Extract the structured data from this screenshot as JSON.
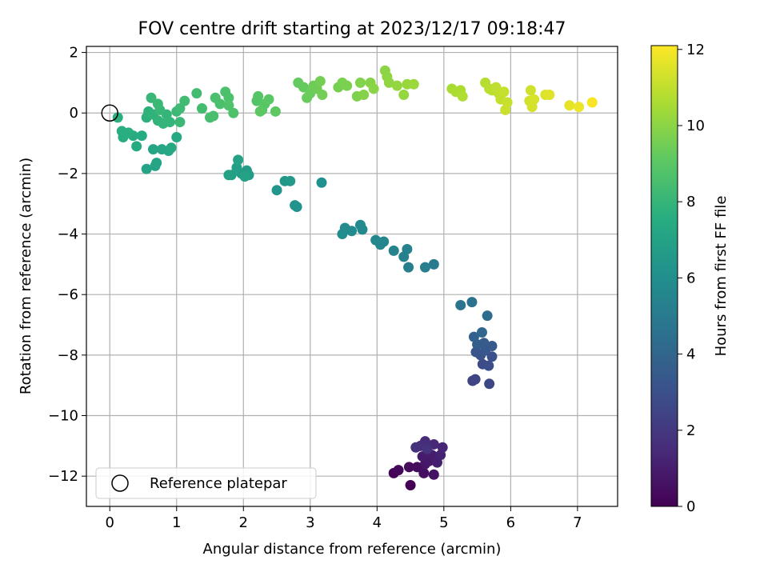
{
  "chart_data": {
    "type": "scatter",
    "title": "FOV centre drift starting at 2023/12/17 09:18:47",
    "xlabel": "Angular distance from reference (arcmin)",
    "ylabel": "Rotation from reference (arcmin)",
    "xlim": [
      -0.35,
      7.6
    ],
    "ylim": [
      -13,
      2.2
    ],
    "xticks": [
      0,
      1,
      2,
      3,
      4,
      5,
      6,
      7
    ],
    "yticks": [
      2,
      0,
      -2,
      -4,
      -6,
      -8,
      -10,
      -12
    ],
    "grid": true,
    "colormap": "viridis",
    "colorbar": {
      "label": "Hours from first FF file",
      "min": 0,
      "max": 12.1,
      "ticks": [
        0,
        2,
        4,
        6,
        8,
        10,
        12
      ]
    },
    "legend": {
      "location": "lower-left",
      "entries": [
        "Reference platepar"
      ]
    },
    "reference_point": {
      "x": 0,
      "y": 0,
      "label": "Reference platepar"
    },
    "points": [
      {
        "x": 4.5,
        "y": -12.3,
        "t": 0.0
      },
      {
        "x": 4.25,
        "y": -11.9,
        "t": 0.1
      },
      {
        "x": 4.32,
        "y": -11.8,
        "t": 0.2
      },
      {
        "x": 4.48,
        "y": -11.7,
        "t": 0.3
      },
      {
        "x": 4.6,
        "y": -11.7,
        "t": 0.4
      },
      {
        "x": 4.7,
        "y": -11.9,
        "t": 0.5
      },
      {
        "x": 4.85,
        "y": -11.95,
        "t": 0.6
      },
      {
        "x": 4.72,
        "y": -11.6,
        "t": 0.7
      },
      {
        "x": 4.78,
        "y": -11.5,
        "t": 0.8
      },
      {
        "x": 4.68,
        "y": -11.35,
        "t": 0.9
      },
      {
        "x": 4.82,
        "y": -11.3,
        "t": 1.0
      },
      {
        "x": 4.9,
        "y": -11.55,
        "t": 1.1
      },
      {
        "x": 4.95,
        "y": -11.3,
        "t": 1.2
      },
      {
        "x": 4.98,
        "y": -11.05,
        "t": 1.3
      },
      {
        "x": 4.85,
        "y": -10.95,
        "t": 1.4
      },
      {
        "x": 4.72,
        "y": -10.85,
        "t": 1.5
      },
      {
        "x": 4.65,
        "y": -11.0,
        "t": 1.6
      },
      {
        "x": 4.58,
        "y": -11.05,
        "t": 1.7
      },
      {
        "x": 4.75,
        "y": -11.1,
        "t": 1.8
      },
      {
        "x": 5.43,
        "y": -8.85,
        "t": 2.4
      },
      {
        "x": 5.47,
        "y": -8.8,
        "t": 2.5
      },
      {
        "x": 5.68,
        "y": -8.95,
        "t": 2.6
      },
      {
        "x": 5.58,
        "y": -8.3,
        "t": 2.8
      },
      {
        "x": 5.67,
        "y": -8.35,
        "t": 2.9
      },
      {
        "x": 5.72,
        "y": -8.05,
        "t": 3.0
      },
      {
        "x": 5.55,
        "y": -8.0,
        "t": 3.1
      },
      {
        "x": 5.48,
        "y": -7.9,
        "t": 3.2
      },
      {
        "x": 5.62,
        "y": -7.85,
        "t": 3.3
      },
      {
        "x": 5.72,
        "y": -7.7,
        "t": 3.4
      },
      {
        "x": 5.6,
        "y": -7.6,
        "t": 3.5
      },
      {
        "x": 5.5,
        "y": -7.65,
        "t": 3.6
      },
      {
        "x": 5.45,
        "y": -7.4,
        "t": 3.8
      },
      {
        "x": 5.57,
        "y": -7.25,
        "t": 4.0
      },
      {
        "x": 5.65,
        "y": -6.7,
        "t": 4.3
      },
      {
        "x": 5.42,
        "y": -6.25,
        "t": 4.6
      },
      {
        "x": 5.25,
        "y": -6.35,
        "t": 4.7
      },
      {
        "x": 4.85,
        "y": -5.0,
        "t": 5.0
      },
      {
        "x": 4.72,
        "y": -5.1,
        "t": 5.1
      },
      {
        "x": 4.47,
        "y": -5.1,
        "t": 5.2
      },
      {
        "x": 4.4,
        "y": -4.75,
        "t": 5.3
      },
      {
        "x": 4.45,
        "y": -4.5,
        "t": 5.35
      },
      {
        "x": 4.25,
        "y": -4.55,
        "t": 5.4
      },
      {
        "x": 4.1,
        "y": -4.25,
        "t": 5.5
      },
      {
        "x": 4.05,
        "y": -4.35,
        "t": 5.55
      },
      {
        "x": 3.98,
        "y": -4.2,
        "t": 5.6
      },
      {
        "x": 3.78,
        "y": -3.85,
        "t": 5.7
      },
      {
        "x": 3.75,
        "y": -3.7,
        "t": 5.75
      },
      {
        "x": 3.62,
        "y": -3.9,
        "t": 5.8
      },
      {
        "x": 3.52,
        "y": -3.8,
        "t": 5.85
      },
      {
        "x": 3.48,
        "y": -4.0,
        "t": 5.9
      },
      {
        "x": 3.17,
        "y": -2.3,
        "t": 6.1
      },
      {
        "x": 2.8,
        "y": -3.1,
        "t": 6.2
      },
      {
        "x": 2.77,
        "y": -3.05,
        "t": 6.25
      },
      {
        "x": 2.5,
        "y": -2.55,
        "t": 6.35
      },
      {
        "x": 2.62,
        "y": -2.25,
        "t": 6.45
      },
      {
        "x": 2.7,
        "y": -2.25,
        "t": 6.5
      },
      {
        "x": 2.08,
        "y": -2.05,
        "t": 6.65
      },
      {
        "x": 2.05,
        "y": -1.9,
        "t": 6.7
      },
      {
        "x": 1.97,
        "y": -2.0,
        "t": 6.75
      },
      {
        "x": 1.9,
        "y": -1.8,
        "t": 6.8
      },
      {
        "x": 1.82,
        "y": -2.05,
        "t": 6.85
      },
      {
        "x": 1.78,
        "y": -2.05,
        "t": 6.9
      },
      {
        "x": 1.92,
        "y": -1.55,
        "t": 6.95
      },
      {
        "x": 2.02,
        "y": -2.1,
        "t": 7.0
      },
      {
        "x": 0.55,
        "y": -1.85,
        "t": 7.05
      },
      {
        "x": 0.7,
        "y": -1.65,
        "t": 7.1
      },
      {
        "x": 0.68,
        "y": -1.75,
        "t": 7.12
      },
      {
        "x": 0.65,
        "y": -1.2,
        "t": 7.15
      },
      {
        "x": 0.78,
        "y": -1.2,
        "t": 7.2
      },
      {
        "x": 0.88,
        "y": -1.25,
        "t": 7.25
      },
      {
        "x": 0.92,
        "y": -1.15,
        "t": 7.3
      },
      {
        "x": 1.0,
        "y": -0.8,
        "t": 7.35
      },
      {
        "x": 0.4,
        "y": -1.1,
        "t": 7.4
      },
      {
        "x": 0.48,
        "y": -0.75,
        "t": 7.45
      },
      {
        "x": 0.35,
        "y": -0.75,
        "t": 7.5
      },
      {
        "x": 0.2,
        "y": -0.8,
        "t": 7.55
      },
      {
        "x": 0.18,
        "y": -0.6,
        "t": 7.6
      },
      {
        "x": 0.28,
        "y": -0.65,
        "t": 7.62
      },
      {
        "x": 0.12,
        "y": -0.15,
        "t": 7.7
      },
      {
        "x": 0.55,
        "y": -0.15,
        "t": 7.75
      },
      {
        "x": 0.58,
        "y": 0.05,
        "t": 7.8
      },
      {
        "x": 0.65,
        "y": -0.05,
        "t": 7.85
      },
      {
        "x": 0.72,
        "y": -0.25,
        "t": 7.9
      },
      {
        "x": 0.8,
        "y": -0.35,
        "t": 7.92
      },
      {
        "x": 0.9,
        "y": -0.3,
        "t": 7.95
      },
      {
        "x": 0.85,
        "y": -0.05,
        "t": 8.0
      },
      {
        "x": 0.75,
        "y": 0.1,
        "t": 8.05
      },
      {
        "x": 0.62,
        "y": 0.5,
        "t": 8.1
      },
      {
        "x": 0.72,
        "y": 0.3,
        "t": 8.12
      },
      {
        "x": 1.05,
        "y": -0.3,
        "t": 8.15
      },
      {
        "x": 1.0,
        "y": 0.05,
        "t": 8.2
      },
      {
        "x": 1.05,
        "y": 0.15,
        "t": 8.25
      },
      {
        "x": 1.12,
        "y": 0.4,
        "t": 8.3
      },
      {
        "x": 1.3,
        "y": 0.65,
        "t": 8.35
      },
      {
        "x": 1.38,
        "y": 0.15,
        "t": 8.4
      },
      {
        "x": 1.5,
        "y": -0.15,
        "t": 8.45
      },
      {
        "x": 1.55,
        "y": -0.1,
        "t": 8.5
      },
      {
        "x": 1.58,
        "y": 0.5,
        "t": 8.55
      },
      {
        "x": 1.65,
        "y": 0.3,
        "t": 8.6
      },
      {
        "x": 1.73,
        "y": 0.7,
        "t": 8.62
      },
      {
        "x": 1.78,
        "y": 0.5,
        "t": 8.65
      },
      {
        "x": 1.85,
        "y": 0.0,
        "t": 8.7
      },
      {
        "x": 1.78,
        "y": 0.25,
        "t": 8.72
      },
      {
        "x": 2.2,
        "y": 0.4,
        "t": 8.8
      },
      {
        "x": 2.22,
        "y": 0.55,
        "t": 8.85
      },
      {
        "x": 2.28,
        "y": 0.1,
        "t": 8.9
      },
      {
        "x": 2.32,
        "y": 0.3,
        "t": 8.95
      },
      {
        "x": 2.38,
        "y": 0.45,
        "t": 9.0
      },
      {
        "x": 2.25,
        "y": 0.05,
        "t": 9.05
      },
      {
        "x": 2.48,
        "y": 0.05,
        "t": 9.1
      },
      {
        "x": 2.82,
        "y": 1.0,
        "t": 9.2
      },
      {
        "x": 2.9,
        "y": 0.85,
        "t": 9.25
      },
      {
        "x": 2.95,
        "y": 0.5,
        "t": 9.3
      },
      {
        "x": 3.0,
        "y": 0.65,
        "t": 9.35
      },
      {
        "x": 3.05,
        "y": 0.9,
        "t": 9.4
      },
      {
        "x": 3.1,
        "y": 0.8,
        "t": 9.45
      },
      {
        "x": 3.18,
        "y": 0.6,
        "t": 9.5
      },
      {
        "x": 3.15,
        "y": 1.05,
        "t": 9.55
      },
      {
        "x": 3.42,
        "y": 0.85,
        "t": 9.6
      },
      {
        "x": 3.48,
        "y": 1.0,
        "t": 9.65
      },
      {
        "x": 3.55,
        "y": 0.9,
        "t": 9.7
      },
      {
        "x": 3.7,
        "y": 0.55,
        "t": 9.75
      },
      {
        "x": 3.75,
        "y": 1.0,
        "t": 9.8
      },
      {
        "x": 3.8,
        "y": 0.6,
        "t": 9.85
      },
      {
        "x": 3.9,
        "y": 1.0,
        "t": 9.9
      },
      {
        "x": 3.95,
        "y": 0.8,
        "t": 9.95
      },
      {
        "x": 4.12,
        "y": 1.4,
        "t": 10.0
      },
      {
        "x": 4.15,
        "y": 1.2,
        "t": 10.05
      },
      {
        "x": 4.18,
        "y": 1.0,
        "t": 10.1
      },
      {
        "x": 4.3,
        "y": 0.9,
        "t": 10.15
      },
      {
        "x": 4.4,
        "y": 0.6,
        "t": 10.2
      },
      {
        "x": 4.45,
        "y": 0.95,
        "t": 10.25
      },
      {
        "x": 4.55,
        "y": 0.95,
        "t": 10.3
      },
      {
        "x": 5.12,
        "y": 0.8,
        "t": 10.55
      },
      {
        "x": 5.18,
        "y": 0.7,
        "t": 10.6
      },
      {
        "x": 5.25,
        "y": 0.75,
        "t": 10.65
      },
      {
        "x": 5.28,
        "y": 0.55,
        "t": 10.7
      },
      {
        "x": 5.62,
        "y": 1.0,
        "t": 10.8
      },
      {
        "x": 5.68,
        "y": 0.8,
        "t": 10.85
      },
      {
        "x": 5.72,
        "y": 0.75,
        "t": 10.9
      },
      {
        "x": 5.78,
        "y": 0.85,
        "t": 10.95
      },
      {
        "x": 5.82,
        "y": 0.65,
        "t": 11.0
      },
      {
        "x": 5.85,
        "y": 0.45,
        "t": 11.05
      },
      {
        "x": 5.9,
        "y": 0.7,
        "t": 11.1
      },
      {
        "x": 5.95,
        "y": 0.35,
        "t": 11.12
      },
      {
        "x": 5.92,
        "y": 0.1,
        "t": 11.15
      },
      {
        "x": 6.3,
        "y": 0.75,
        "t": 11.25
      },
      {
        "x": 6.28,
        "y": 0.4,
        "t": 11.3
      },
      {
        "x": 6.32,
        "y": 0.2,
        "t": 11.35
      },
      {
        "x": 6.35,
        "y": 0.45,
        "t": 11.4
      },
      {
        "x": 6.52,
        "y": 0.6,
        "t": 11.5
      },
      {
        "x": 6.58,
        "y": 0.6,
        "t": 11.55
      },
      {
        "x": 6.88,
        "y": 0.25,
        "t": 11.7
      },
      {
        "x": 7.02,
        "y": 0.2,
        "t": 11.8
      },
      {
        "x": 7.22,
        "y": 0.35,
        "t": 12.0
      }
    ]
  }
}
